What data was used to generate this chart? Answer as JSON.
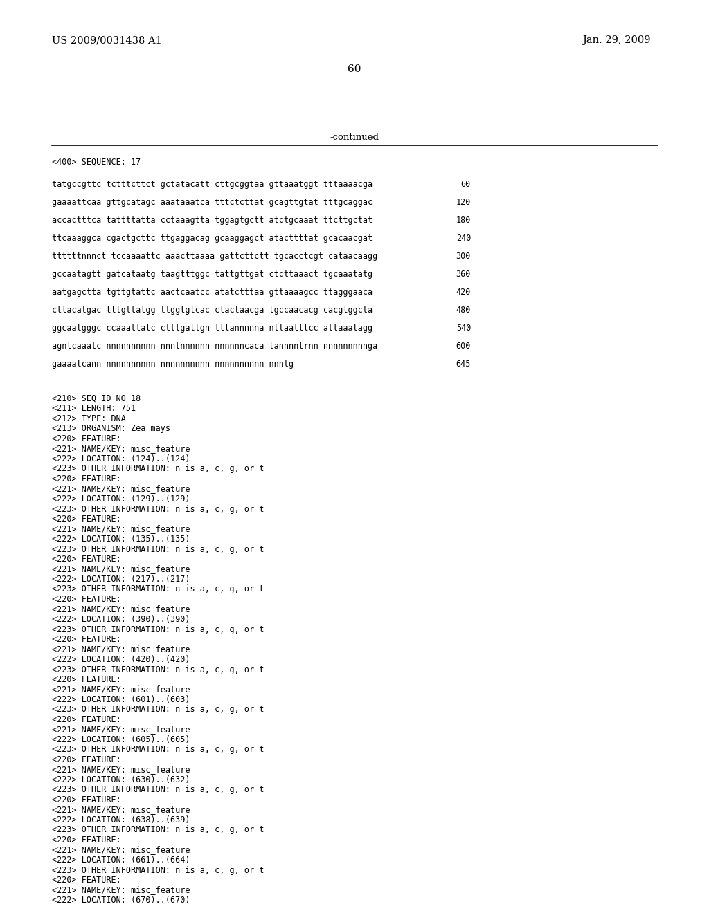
{
  "background_color": "#ffffff",
  "header_left": "US 2009/0031438 A1",
  "header_right": "Jan. 29, 2009",
  "page_number": "60",
  "continued_label": "-continued",
  "sequence_data": [
    {
      "seq": "tatgccgttc tctttcttct gctatacatt cttgcggtaa gttaaatggt tttaaaacga",
      "num": "60"
    },
    {
      "seq": "gaaaattcaa gttgcatagc aaataaatca tttctcttat gcagttgtat tttgcaggac",
      "num": "120"
    },
    {
      "seq": "accactttca tattttatta cctaaagtta tggagtgctt atctgcaaat ttcttgctat",
      "num": "180"
    },
    {
      "seq": "ttcaaaggca cgactgcttc ttgaggacag gcaaggagct atacttttat gcacaacgat",
      "num": "240"
    },
    {
      "seq": "ttttttnnnct tccaaaattc aaacttaaaa gattcttctt tgcacctcgt cataacaagg",
      "num": "300"
    },
    {
      "seq": "gccaatagtt gatcataatg taagtttggc tattgttgat ctcttaaact tgcaaatatg",
      "num": "360"
    },
    {
      "seq": "aatgagctta tgttgtattc aactcaatcc atatctttaa gttaaaagcc ttagggaaca",
      "num": "420"
    },
    {
      "seq": "cttacatgac tttgttatgg ttggtgtcac ctactaacga tgccaacacg cacgtggcta",
      "num": "480"
    },
    {
      "seq": "ggcaatgggc ccaaattatc ctttgattgn tttannnnna nttaatttcc attaaatagg",
      "num": "540"
    },
    {
      "seq": "agntcaaatc nnnnnnnnnn nnntnnnnnn nnnnnncaca tannnntrnn nnnnnnnnnga",
      "num": "600"
    },
    {
      "seq": "gaaaatcann nnnnnnnnnn nnnnnnnnnn nnnnnnnnnn nnntg",
      "num": "645"
    }
  ],
  "annotation_lines": [
    "<210> SEQ ID NO 18",
    "<211> LENGTH: 751",
    "<212> TYPE: DNA",
    "<213> ORGANISM: Zea mays",
    "<220> FEATURE:",
    "<221> NAME/KEY: misc_feature",
    "<222> LOCATION: (124)..(124)",
    "<223> OTHER INFORMATION: n is a, c, g, or t",
    "<220> FEATURE:",
    "<221> NAME/KEY: misc_feature",
    "<222> LOCATION: (129)..(129)",
    "<223> OTHER INFORMATION: n is a, c, g, or t",
    "<220> FEATURE:",
    "<221> NAME/KEY: misc_feature",
    "<222> LOCATION: (135)..(135)",
    "<223> OTHER INFORMATION: n is a, c, g, or t",
    "<220> FEATURE:",
    "<221> NAME/KEY: misc_feature",
    "<222> LOCATION: (217)..(217)",
    "<223> OTHER INFORMATION: n is a, c, g, or t",
    "<220> FEATURE:",
    "<221> NAME/KEY: misc_feature",
    "<222> LOCATION: (390)..(390)",
    "<223> OTHER INFORMATION: n is a, c, g, or t",
    "<220> FEATURE:",
    "<221> NAME/KEY: misc_feature",
    "<222> LOCATION: (420)..(420)",
    "<223> OTHER INFORMATION: n is a, c, g, or t",
    "<220> FEATURE:",
    "<221> NAME/KEY: misc_feature",
    "<222> LOCATION: (601)..(603)",
    "<223> OTHER INFORMATION: n is a, c, g, or t",
    "<220> FEATURE:",
    "<221> NAME/KEY: misc_feature",
    "<222> LOCATION: (605)..(605)",
    "<223> OTHER INFORMATION: n is a, c, g, or t",
    "<220> FEATURE:",
    "<221> NAME/KEY: misc_feature",
    "<222> LOCATION: (630)..(632)",
    "<223> OTHER INFORMATION: n is a, c, g, or t",
    "<220> FEATURE:",
    "<221> NAME/KEY: misc_feature",
    "<222> LOCATION: (638)..(639)",
    "<223> OTHER INFORMATION: n is a, c, g, or t",
    "<220> FEATURE:",
    "<221> NAME/KEY: misc_feature",
    "<222> LOCATION: (661)..(664)",
    "<223> OTHER INFORMATION: n is a, c, g, or t",
    "<220> FEATURE:",
    "<221> NAME/KEY: misc_feature",
    "<222> LOCATION: (670)..(670)"
  ]
}
